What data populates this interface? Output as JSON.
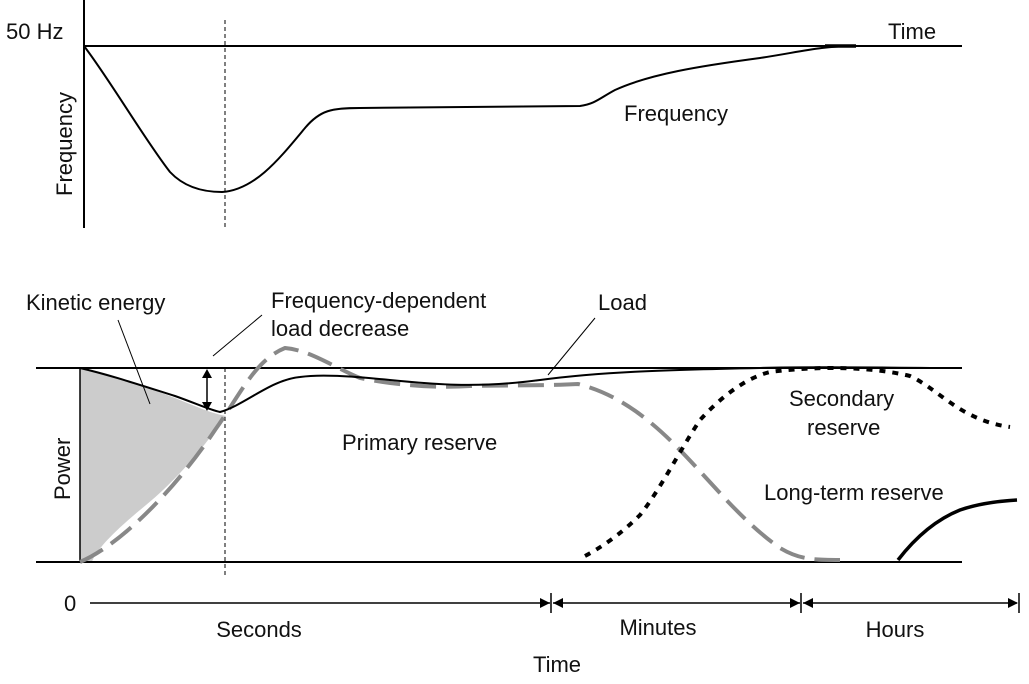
{
  "top_panel": {
    "frequency_level": "50 Hz",
    "time_label": "Time",
    "y_axis_label": "Frequency",
    "curve_label": "Frequency"
  },
  "bottom_panel": {
    "y_axis_label": "Power",
    "kinetic_energy_label": "Kinetic energy",
    "freq_dep_label_line1": "Frequency-dependent",
    "freq_dep_label_line2": "load decrease",
    "load_label": "Load",
    "primary_reserve_label": "Primary reserve",
    "secondary_reserve_line1": "Secondary",
    "secondary_reserve_line2": "reserve",
    "long_term_reserve_label": "Long-term reserve"
  },
  "time_axis": {
    "origin_label": "0",
    "segments": [
      "Seconds",
      "Minutes",
      "Hours"
    ],
    "title": "Time"
  },
  "colors": {
    "line": "#000000",
    "primary_reserve": "#888888",
    "kinetic_fill": "#cccccc"
  }
}
